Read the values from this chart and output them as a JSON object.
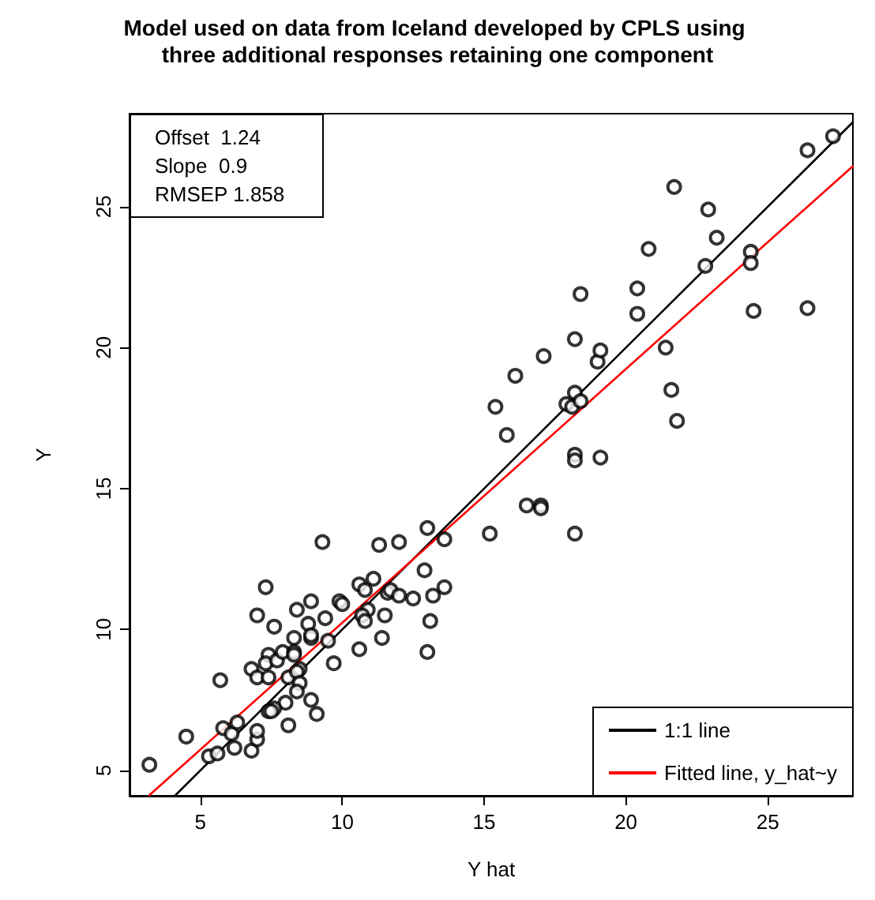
{
  "chart_data": {
    "type": "scatter",
    "title": "Model used on data from Iceland developed by CPLS using three additional responses retaining one component",
    "xlabel": "Y hat",
    "ylabel": "Y",
    "annotations": [
      "Offset  1.24",
      "Slope  0.9",
      "RMSEP 1.858"
    ],
    "xlim": [
      2.5,
      28
    ],
    "ylim": [
      4.1,
      28.3
    ],
    "xticks": [
      5,
      10,
      15,
      20,
      25
    ],
    "yticks": [
      5,
      10,
      15,
      20,
      25
    ],
    "marker": "circle",
    "legend": "bottom right",
    "series": [
      {
        "color": "#000000",
        "x": [
          3.2,
          4.5,
          5.3,
          5.6,
          5.7,
          5.8,
          6.1,
          6.2,
          6.3,
          6.8,
          7.0,
          7.0,
          7.3,
          7.0,
          7.6,
          6.8,
          7.0,
          7.4,
          7.3,
          7.4,
          7.7,
          7.9,
          8.3,
          8.3,
          8.3,
          8.4,
          8.8,
          8.1,
          8.5,
          8.4,
          8.5,
          8.4,
          8.0,
          7.6,
          7.4,
          7.5,
          8.1,
          8.9,
          8.9,
          8.9,
          8.9,
          9.1,
          9.3,
          9.4,
          9.5,
          9.7,
          9.9,
          10.0,
          10.6,
          10.8,
          10.9,
          10.7,
          10.8,
          10.6,
          11.1,
          11.3,
          11.6,
          11.7,
          12.0,
          12.5,
          13.2,
          12.9,
          13.6,
          11.5,
          13.1,
          11.4,
          13.0,
          12.0,
          13.0,
          13.6,
          15.2,
          16.5,
          17.0,
          17.0,
          18.2,
          15.4,
          15.8,
          16.1,
          17.1,
          18.2,
          18.4,
          18.2,
          17.9,
          18.1,
          18.4,
          19.0,
          19.1,
          18.2,
          18.2,
          19.1,
          20.4,
          20.4,
          20.8,
          21.7,
          21.4,
          21.6,
          21.8,
          22.9,
          22.8,
          23.2,
          24.4,
          24.4,
          24.5,
          26.4,
          27.3,
          26.4
        ],
        "values": [
          5.2,
          6.2,
          5.5,
          5.6,
          8.2,
          6.5,
          6.3,
          5.8,
          6.7,
          5.7,
          6.1,
          6.4,
          11.5,
          10.5,
          10.1,
          8.6,
          8.3,
          9.1,
          8.8,
          8.3,
          8.9,
          9.2,
          9.7,
          9.2,
          9.1,
          10.7,
          10.2,
          8.3,
          8.6,
          8.5,
          8.1,
          7.8,
          7.4,
          7.2,
          7.1,
          7.1,
          6.6,
          11.0,
          9.7,
          9.8,
          7.5,
          7.0,
          13.1,
          10.4,
          9.6,
          8.8,
          11.0,
          10.9,
          11.6,
          11.4,
          10.7,
          10.5,
          10.3,
          9.3,
          11.8,
          13.0,
          11.3,
          11.4,
          11.2,
          11.1,
          11.2,
          12.1,
          11.5,
          10.5,
          10.3,
          9.7,
          9.2,
          13.1,
          13.6,
          13.2,
          13.4,
          14.4,
          14.4,
          14.3,
          13.4,
          17.9,
          16.9,
          19.0,
          19.7,
          20.3,
          21.9,
          18.4,
          18.0,
          17.9,
          18.1,
          19.5,
          19.9,
          16.2,
          16.0,
          16.1,
          22.1,
          21.2,
          23.5,
          25.7,
          20.0,
          18.5,
          17.4,
          24.9,
          22.9,
          23.9,
          23.4,
          23.0,
          21.3,
          27.0,
          27.5,
          21.4
        ]
      },
      {
        "type": "line",
        "name": "1:1 line",
        "marker": "none",
        "color": "#000000",
        "x": [
          4.1,
          28
        ],
        "values": [
          4.1,
          28
        ]
      },
      {
        "type": "line",
        "name": "Fitted line, y_hat~y",
        "marker": "none",
        "color": "#ff0000",
        "x": [
          3.2,
          28
        ],
        "values": [
          4.12,
          26.44
        ]
      }
    ]
  }
}
